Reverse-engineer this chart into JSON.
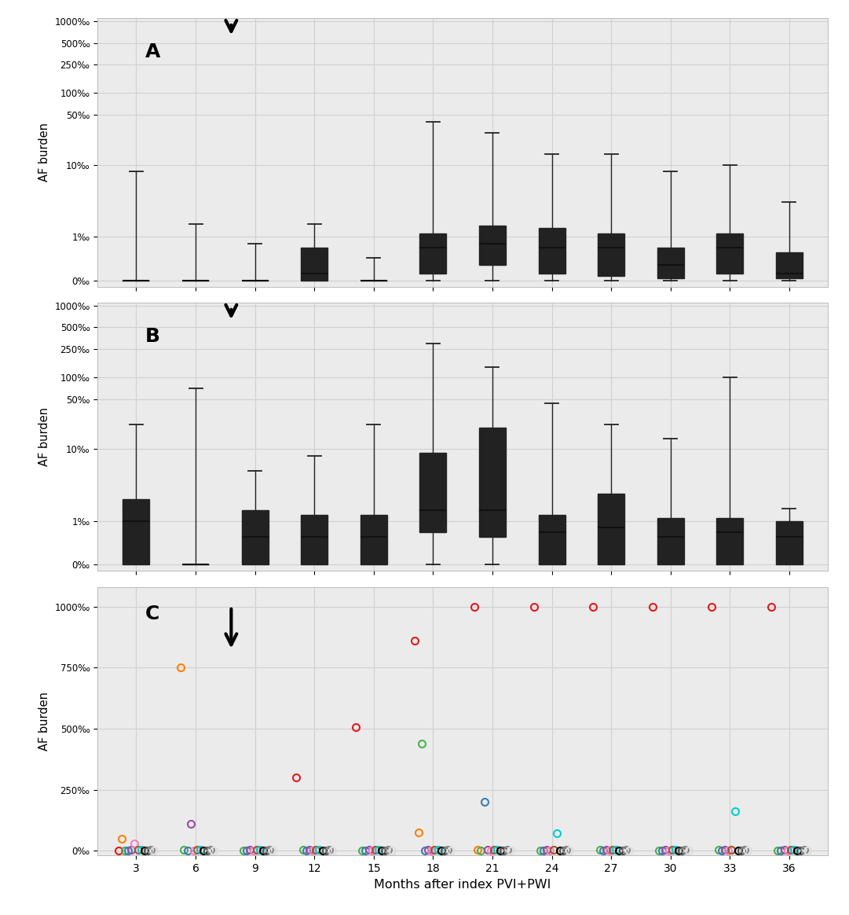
{
  "months": [
    3,
    6,
    9,
    12,
    15,
    18,
    21,
    24,
    27,
    30,
    33,
    36
  ],
  "panel_A_boxes": {
    "3": {
      "q1": 0,
      "med": 0,
      "q3": 0,
      "whislo": 0,
      "whishi": 8
    },
    "6": {
      "q1": 0,
      "med": 0,
      "q3": 0,
      "whislo": 0,
      "whishi": 1.5
    },
    "9": {
      "q1": 0,
      "med": 0,
      "q3": 0,
      "whislo": 0,
      "whishi": 0.8
    },
    "12": {
      "q1": 0,
      "med": 0.3,
      "q3": 0.7,
      "whislo": 0,
      "whishi": 1.5
    },
    "15": {
      "q1": 0,
      "med": 0,
      "q3": 0,
      "whislo": 0,
      "whishi": 0.5
    },
    "18": {
      "q1": 0.3,
      "med": 0.7,
      "q3": 1.1,
      "whislo": 0,
      "whishi": 40
    },
    "21": {
      "q1": 0.4,
      "med": 0.8,
      "q3": 1.4,
      "whislo": 0,
      "whishi": 28
    },
    "24": {
      "q1": 0.3,
      "med": 0.7,
      "q3": 1.3,
      "whislo": 0,
      "whishi": 14
    },
    "27": {
      "q1": 0.2,
      "med": 0.7,
      "q3": 1.1,
      "whislo": 0,
      "whishi": 14
    },
    "30": {
      "q1": 0.1,
      "med": 0.4,
      "q3": 0.7,
      "whislo": 0,
      "whishi": 8
    },
    "33": {
      "q1": 0.3,
      "med": 0.7,
      "q3": 1.1,
      "whislo": 0,
      "whishi": 10
    },
    "36": {
      "q1": 0.1,
      "med": 0.3,
      "q3": 0.6,
      "whislo": 0,
      "whishi": 3
    }
  },
  "panel_B_boxes": {
    "3": {
      "q1": 0,
      "med": 1.0,
      "q3": 2.0,
      "whislo": 0,
      "whishi": 22
    },
    "6": {
      "q1": 0,
      "med": 0,
      "q3": 0,
      "whislo": 0,
      "whishi": 70
    },
    "9": {
      "q1": 0,
      "med": 0.6,
      "q3": 1.4,
      "whislo": 0,
      "whishi": 5
    },
    "12": {
      "q1": 0,
      "med": 0.6,
      "q3": 1.2,
      "whislo": 0,
      "whishi": 8
    },
    "15": {
      "q1": 0,
      "med": 0.6,
      "q3": 1.2,
      "whislo": 0,
      "whishi": 22
    },
    "18": {
      "q1": 0.7,
      "med": 1.4,
      "q3": 9.0,
      "whislo": 0,
      "whishi": 300
    },
    "21": {
      "q1": 0.6,
      "med": 1.4,
      "q3": 20,
      "whislo": 0,
      "whishi": 140
    },
    "24": {
      "q1": 0,
      "med": 0.7,
      "q3": 1.2,
      "whislo": 0,
      "whishi": 44
    },
    "27": {
      "q1": 0,
      "med": 0.8,
      "q3": 2.4,
      "whislo": 0,
      "whishi": 22
    },
    "30": {
      "q1": 0,
      "med": 0.6,
      "q3": 1.1,
      "whislo": 0,
      "whishi": 14
    },
    "33": {
      "q1": 0,
      "med": 0.7,
      "q3": 1.1,
      "whislo": 0,
      "whishi": 100
    },
    "36": {
      "q1": 0,
      "med": 0.6,
      "q3": 1.0,
      "whislo": 0,
      "whishi": 1.5
    }
  },
  "panel_C_patients": [
    {
      "color": "#e41a1c",
      "data": {
        "3": 2,
        "6": null,
        "9": null,
        "12": 300,
        "15": 505,
        "18": 860,
        "21": 1000,
        "24": 1000,
        "27": 1000,
        "30": 1000,
        "33": 1000,
        "36": 1000
      }
    },
    {
      "color": "#ff7f00",
      "data": {
        "3": 50,
        "6": 750,
        "9": null,
        "12": null,
        "15": null,
        "18": 75,
        "21": 5,
        "24": null,
        "27": null,
        "30": null,
        "33": null,
        "36": null
      }
    },
    {
      "color": "#4daf4a",
      "data": {
        "3": 2,
        "6": 5,
        "9": 2,
        "12": 3,
        "15": 2,
        "18": 440,
        "21": 2,
        "24": 2,
        "27": 3,
        "30": 2,
        "33": 3,
        "36": 2
      }
    },
    {
      "color": "#377eb8",
      "data": {
        "3": 1,
        "6": 2,
        "9": 1,
        "12": 2,
        "15": 1,
        "18": 2,
        "21": 200,
        "24": 1,
        "27": 2,
        "30": 1,
        "33": 2,
        "36": 1
      }
    },
    {
      "color": "#984ea3",
      "data": {
        "3": 3,
        "6": 110,
        "9": 3,
        "12": 3,
        "15": 3,
        "18": 3,
        "21": 3,
        "24": 3,
        "27": 3,
        "30": 3,
        "33": 3,
        "36": 3
      }
    },
    {
      "color": "#f781bf",
      "data": {
        "3": 30,
        "6": 2,
        "9": 2,
        "12": 2,
        "15": 2,
        "18": 2,
        "21": 2,
        "24": 2,
        "27": 2,
        "30": 2,
        "33": 2,
        "36": 2
      }
    },
    {
      "color": "#a65628",
      "data": {
        "3": 5,
        "6": 5,
        "9": 5,
        "12": 5,
        "15": 5,
        "18": 5,
        "21": 5,
        "24": 5,
        "27": 5,
        "30": 5,
        "33": 5,
        "36": 5
      }
    },
    {
      "color": "#00ced1",
      "data": {
        "3": 4,
        "6": 4,
        "9": 4,
        "12": 4,
        "15": 4,
        "18": 4,
        "21": 4,
        "24": 70,
        "27": 4,
        "30": 4,
        "33": 160,
        "36": 4
      }
    },
    {
      "color": "#000000",
      "data": {
        "3": 1,
        "6": 1,
        "9": 1,
        "12": 1,
        "15": 1,
        "18": 1,
        "21": 1,
        "24": 1,
        "27": 1,
        "30": 1,
        "33": 1,
        "36": 1
      }
    },
    {
      "color": "#555555",
      "data": {
        "3": 2,
        "6": 2,
        "9": 2,
        "12": 2,
        "15": 2,
        "18": 2,
        "21": 2,
        "24": 2,
        "27": 2,
        "30": 2,
        "33": 2,
        "36": 2
      }
    },
    {
      "color": "#888888",
      "data": {
        "3": 3,
        "6": 3,
        "9": 3,
        "12": 3,
        "15": 3,
        "18": 3,
        "21": 3,
        "24": 3,
        "27": 3,
        "30": 3,
        "33": 3,
        "36": 3
      }
    },
    {
      "color": "#dddddd",
      "data": {
        "3": 1,
        "6": 1,
        "9": 1,
        "12": 1,
        "15": 1,
        "18": 1,
        "21": 1,
        "24": 1,
        "27": 1,
        "30": 1,
        "33": 1,
        "36": 1
      }
    }
  ],
  "yticks_AB": [
    0,
    1,
    10,
    50,
    100,
    250,
    500,
    1000
  ],
  "ytick_labels_AB": [
    "0‰",
    "1‰",
    "10‰",
    "50‰",
    "100‰",
    "250‰",
    "500‰",
    "1000‰"
  ],
  "yticks_C": [
    0,
    250,
    500,
    750,
    1000
  ],
  "ytick_labels_C": [
    "0‰",
    "250‰",
    "500‰",
    "750‰",
    "1000‰"
  ],
  "box_color": "#3bb89a",
  "box_edge_color": "#222222",
  "median_color": "#111111",
  "grid_color": "#d0d0d0",
  "bg_color": "#ebebeb",
  "xlabel": "Months after index PVI+PWI",
  "ylabel": "AF burden"
}
